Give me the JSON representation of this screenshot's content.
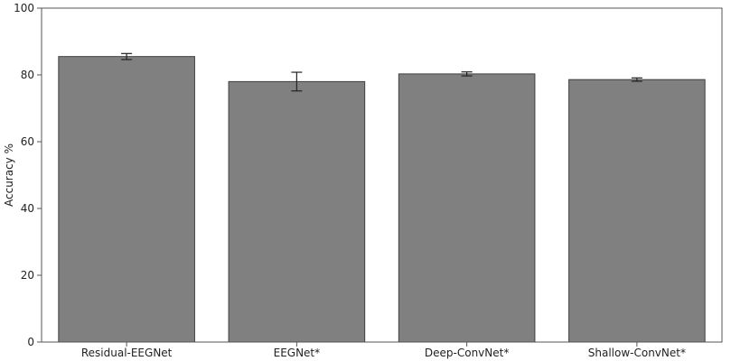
{
  "chart_data": {
    "type": "bar",
    "title": "",
    "xlabel": "",
    "ylabel": "Accuracy %",
    "ylim": [
      0,
      100
    ],
    "yticks": [
      0,
      20,
      40,
      60,
      80,
      100
    ],
    "categories": [
      "Residual-EEGNet",
      "EEGNet*",
      "Deep-ConvNet*",
      "Shallow-ConvNet*"
    ],
    "values": [
      85.5,
      78.0,
      80.3,
      78.6
    ],
    "error": [
      0.9,
      2.8,
      0.6,
      0.5
    ],
    "grid": false,
    "bar_color": "#808080",
    "bar_edge_color": "#404040"
  }
}
